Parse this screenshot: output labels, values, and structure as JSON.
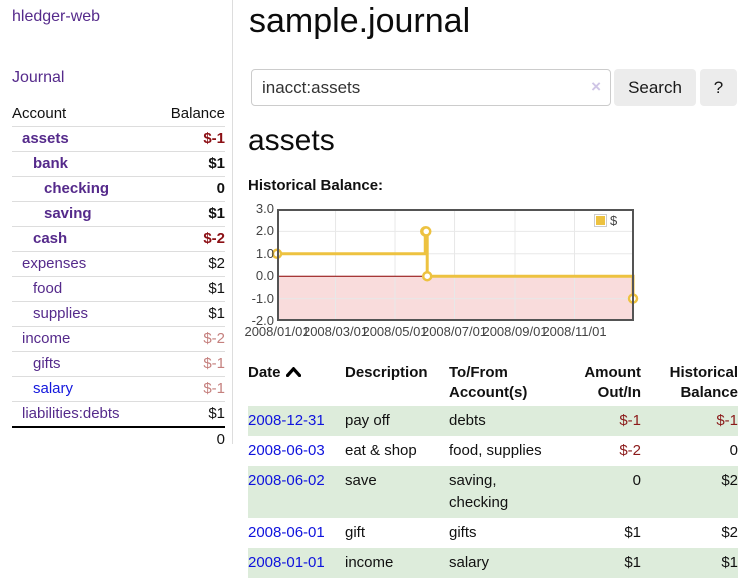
{
  "app": {
    "brand": "hledger-web",
    "nav": {
      "journal": "Journal"
    }
  },
  "colors": {
    "link_purple": "#552a8b",
    "link_blue": "#1418dd",
    "negative": "#8b1a1a",
    "negative_muted": "#c5807e",
    "row_stripe_green": "#ddecdb",
    "series_gold": "#edc240",
    "negative_region_pink": "#f9dcdc",
    "zero_line_red": "#8b0000",
    "grid_gray": "#e8e8e8",
    "plot_border": "#545454"
  },
  "sidebar": {
    "header": {
      "account": "Account",
      "balance": "Balance"
    },
    "accounts": [
      {
        "name": "assets",
        "indent": 1,
        "balance": "$-1",
        "bold": true,
        "balance_style": "negative"
      },
      {
        "name": "bank",
        "indent": 2,
        "balance": "$1",
        "bold": true,
        "balance_style": "normal"
      },
      {
        "name": "checking",
        "indent": 3,
        "balance": "0",
        "bold": true,
        "balance_style": "normal"
      },
      {
        "name": "saving",
        "indent": 3,
        "balance": "$1",
        "bold": true,
        "balance_style": "normal"
      },
      {
        "name": "cash",
        "indent": 2,
        "balance": "$-2",
        "bold": true,
        "balance_style": "negative"
      },
      {
        "name": "expenses",
        "indent": 1,
        "balance": "$2",
        "bold": false,
        "balance_style": "normal"
      },
      {
        "name": "food",
        "indent": 2,
        "balance": "$1",
        "bold": false,
        "balance_style": "normal"
      },
      {
        "name": "supplies",
        "indent": 2,
        "balance": "$1",
        "bold": false,
        "balance_style": "normal"
      },
      {
        "name": "income",
        "indent": 1,
        "balance": "$-2",
        "bold": false,
        "balance_style": "negative-muted"
      },
      {
        "name": "gifts",
        "indent": 2,
        "balance": "$-1",
        "bold": false,
        "balance_style": "negative-muted"
      },
      {
        "name": "salary",
        "indent": 2,
        "balance": "$-1",
        "bold": false,
        "balance_style": "negative-muted",
        "link_color": "blue"
      },
      {
        "name": "liabilities:debts",
        "indent": 1,
        "balance": "$1",
        "bold": false,
        "balance_style": "normal"
      }
    ],
    "total": "0"
  },
  "main": {
    "title": "sample.journal",
    "search": {
      "value": "inacct:assets",
      "clear_icon": "×",
      "button_label": "Search",
      "help_label": "?"
    },
    "account_heading": "assets",
    "chart_label": "Historical Balance:"
  },
  "chart_data": {
    "type": "line",
    "step": true,
    "title": "Historical Balance",
    "legend": [
      {
        "name": "$",
        "color": "#edc240"
      }
    ],
    "legend_position": "top-right",
    "x_range": [
      "2008-01-01",
      "2009-01-01"
    ],
    "ylim": [
      -2.0,
      3.0
    ],
    "y_ticks": [
      3.0,
      2.0,
      1.0,
      0.0,
      -1.0,
      -2.0
    ],
    "x_ticks": [
      "2008/01/01",
      "2008/03/01",
      "2008/05/01",
      "2008/07/01",
      "2008/09/01",
      "2008/11/01"
    ],
    "series": [
      {
        "name": "$",
        "points": [
          {
            "date": "2008-01-01",
            "value": 1
          },
          {
            "date": "2008-06-01",
            "value": 2
          },
          {
            "date": "2008-06-02",
            "value": 2
          },
          {
            "date": "2008-06-03",
            "value": 0
          },
          {
            "date": "2008-12-31",
            "value": -1
          }
        ]
      }
    ],
    "grid": true,
    "negative_region_highlight": true
  },
  "register": {
    "columns": [
      "Date",
      "Description",
      "To/From Account(s)",
      "Amount Out/In",
      "Historical Balance"
    ],
    "sort": {
      "column": "Date",
      "direction": "ascending"
    },
    "rows": [
      {
        "date": "2008-12-31",
        "description": "pay off",
        "accounts": "debts",
        "amount": "$-1",
        "amount_negative": true,
        "balance": "$-1",
        "balance_negative": true
      },
      {
        "date": "2008-06-03",
        "description": "eat & shop",
        "accounts": "food, supplies",
        "amount": "$-2",
        "amount_negative": true,
        "balance": "0",
        "balance_negative": false
      },
      {
        "date": "2008-06-02",
        "description": "save",
        "accounts": "saving, checking",
        "amount": "0",
        "amount_negative": false,
        "balance": "$2",
        "balance_negative": false
      },
      {
        "date": "2008-06-01",
        "description": "gift",
        "accounts": "gifts",
        "amount": "$1",
        "amount_negative": false,
        "balance": "$2",
        "balance_negative": false
      },
      {
        "date": "2008-01-01",
        "description": "income",
        "accounts": "salary",
        "amount": "$1",
        "amount_negative": false,
        "balance": "$1",
        "balance_negative": false
      }
    ]
  }
}
